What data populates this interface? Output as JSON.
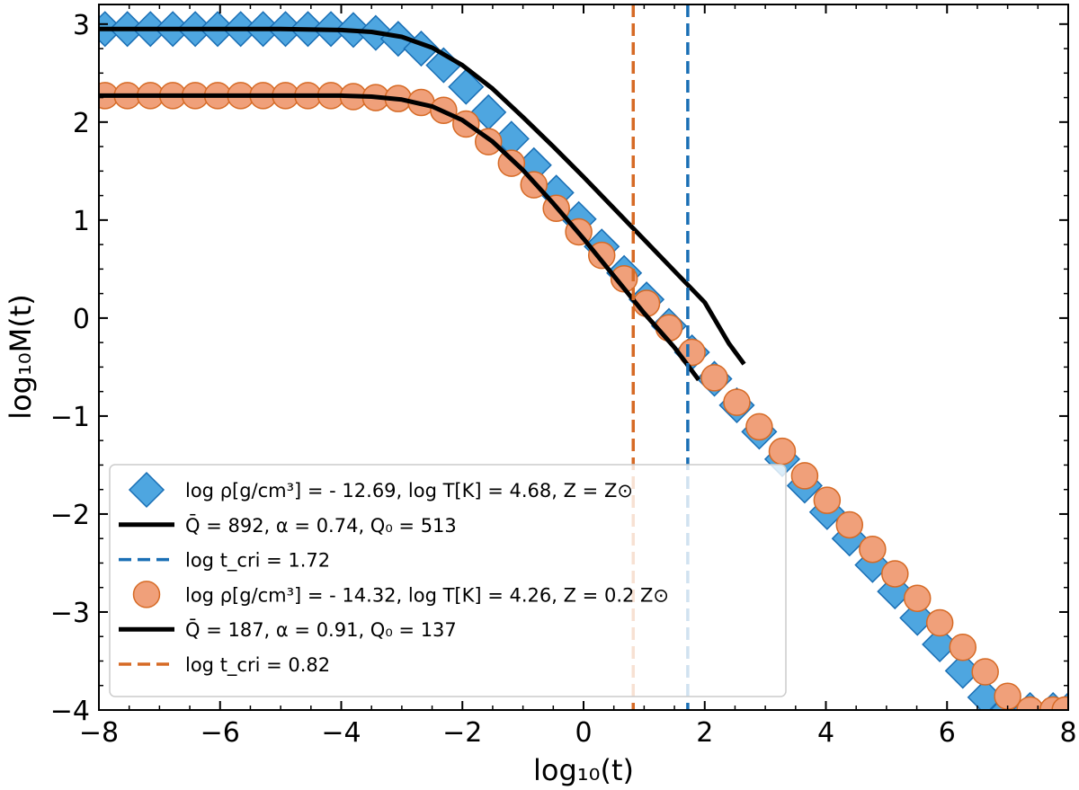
{
  "chart_data": {
    "type": "scatter",
    "xlabel": "log₁₀(t)",
    "ylabel": "log₁₀M(t)",
    "xlim": [
      -8,
      8
    ],
    "ylim": [
      -4,
      3.2
    ],
    "xticks": [
      -8,
      -6,
      -4,
      -2,
      0,
      2,
      4,
      6,
      8
    ],
    "yticks": [
      -4,
      -3,
      -2,
      -1,
      0,
      1,
      2,
      3
    ],
    "xtick_labels": [
      "−8",
      "−6",
      "−4",
      "−2",
      "0",
      "2",
      "4",
      "6",
      "8"
    ],
    "ytick_labels": [
      "−4",
      "−3",
      "−2",
      "−1",
      "0",
      "1",
      "2",
      "3"
    ],
    "grid": false,
    "legend_position": "lower-left",
    "series": [
      {
        "name": "log ρ[g/cm³] = - 12.69, log T[K] = 4.68, Z = Z⊙",
        "kind": "markers",
        "marker": "diamond",
        "color": "#4EA6E0",
        "edge": "#1A6FB5",
        "x": [
          -7.9,
          -7.53,
          -7.15,
          -6.78,
          -6.41,
          -6.04,
          -5.66,
          -5.29,
          -4.92,
          -4.55,
          -4.17,
          -3.8,
          -3.43,
          -3.06,
          -2.68,
          -2.31,
          -1.94,
          -1.57,
          -1.19,
          -0.82,
          -0.45,
          -0.08,
          0.3,
          0.67,
          1.04,
          1.41,
          1.79,
          2.16,
          2.53,
          2.9,
          3.28,
          3.65,
          4.02,
          4.39,
          4.77,
          5.14,
          5.51,
          5.88,
          6.26,
          6.63,
          7.0,
          7.37,
          7.75,
          8.0
        ],
        "y": [
          2.95,
          2.95,
          2.95,
          2.95,
          2.95,
          2.95,
          2.95,
          2.95,
          2.95,
          2.95,
          2.95,
          2.94,
          2.91,
          2.85,
          2.75,
          2.58,
          2.36,
          2.1,
          1.83,
          1.56,
          1.28,
          1.01,
          0.73,
          0.46,
          0.19,
          -0.08,
          -0.35,
          -0.62,
          -0.89,
          -1.16,
          -1.44,
          -1.71,
          -1.98,
          -2.25,
          -2.52,
          -2.79,
          -3.06,
          -3.33,
          -3.6,
          -3.87,
          -4.0,
          -4.0,
          -4.0,
          -4.0
        ]
      },
      {
        "name": "Q̄ = 892, α = 0.74, Q₀ = 513",
        "kind": "line",
        "color": "#000000",
        "x": [
          -8,
          -7,
          -6,
          -5,
          -4,
          -3.5,
          -3,
          -2.5,
          -2,
          -1.5,
          -1,
          -0.5,
          0,
          0.5,
          1,
          1.5,
          2,
          2.4,
          2.65
        ],
        "y": [
          2.95,
          2.95,
          2.95,
          2.95,
          2.94,
          2.92,
          2.87,
          2.76,
          2.58,
          2.34,
          2.05,
          1.75,
          1.44,
          1.12,
          0.8,
          0.48,
          0.16,
          -0.26,
          -0.47
        ]
      },
      {
        "name": "log t_cri = 1.72",
        "kind": "vline",
        "color": "#1A6FB5",
        "x": 1.72
      },
      {
        "name": "log ρ[g/cm³] = - 14.32, log T[K] = 4.26, Z = 0.2 Z⊙",
        "kind": "markers",
        "marker": "circle",
        "color": "#F0A07A",
        "edge": "#D66A25",
        "x": [
          -7.9,
          -7.53,
          -7.15,
          -6.78,
          -6.41,
          -6.04,
          -5.66,
          -5.29,
          -4.92,
          -4.55,
          -4.17,
          -3.8,
          -3.43,
          -3.06,
          -2.68,
          -2.31,
          -1.94,
          -1.57,
          -1.19,
          -0.82,
          -0.45,
          -0.08,
          0.3,
          0.67,
          1.04,
          1.41,
          1.79,
          2.16,
          2.53,
          2.9,
          3.28,
          3.65,
          4.02,
          4.39,
          4.77,
          5.14,
          5.51,
          5.88,
          6.26,
          6.63,
          7.0,
          7.37,
          7.75,
          7.95
        ],
        "y": [
          2.27,
          2.27,
          2.27,
          2.27,
          2.27,
          2.27,
          2.27,
          2.27,
          2.27,
          2.27,
          2.27,
          2.26,
          2.25,
          2.24,
          2.2,
          2.12,
          1.98,
          1.8,
          1.58,
          1.36,
          1.12,
          0.88,
          0.64,
          0.4,
          0.15,
          -0.1,
          -0.35,
          -0.61,
          -0.86,
          -1.11,
          -1.36,
          -1.61,
          -1.86,
          -2.11,
          -2.36,
          -2.61,
          -2.86,
          -3.11,
          -3.36,
          -3.61,
          -3.86,
          -4.0,
          -4.0,
          -4.0
        ]
      },
      {
        "name": "Q̄ = 187, α = 0.91, Q₀ = 137",
        "kind": "line",
        "color": "#000000",
        "x": [
          -8,
          -7,
          -6,
          -5,
          -4,
          -3.5,
          -3,
          -2.5,
          -2,
          -1.5,
          -1,
          -0.5,
          0,
          0.5,
          1,
          1.5,
          1.9
        ],
        "y": [
          2.27,
          2.27,
          2.27,
          2.27,
          2.27,
          2.26,
          2.23,
          2.16,
          2.02,
          1.8,
          1.51,
          1.17,
          0.81,
          0.43,
          0.05,
          -0.3,
          -0.63
        ]
      },
      {
        "name": "log t_cri = 0.82",
        "kind": "vline",
        "color": "#D66A25",
        "x": 0.82
      }
    ]
  }
}
